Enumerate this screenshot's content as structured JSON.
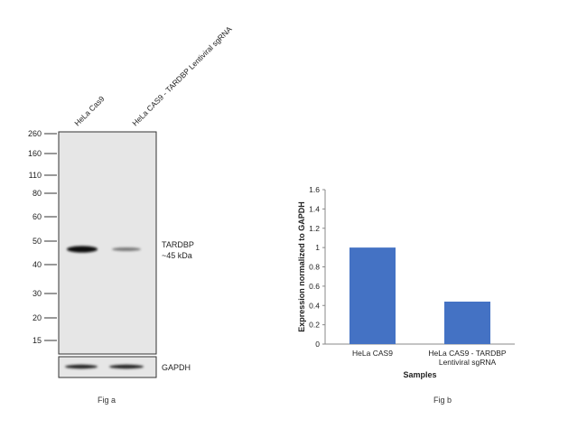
{
  "fig_a": {
    "lanes": [
      "HeLa Cas9",
      "HeLa CAS9 - TARDBP Lentiviral sgRNA"
    ],
    "markers": [
      "260",
      "160",
      "110",
      "80",
      "60",
      "50",
      "40",
      "30",
      "20",
      "15"
    ],
    "target_label": "TARDBP",
    "target_size": "~45 kDa",
    "loading_control": "GAPDH",
    "caption": "Fig a"
  },
  "fig_b": {
    "caption": "Fig b"
  },
  "chart_data": {
    "type": "bar",
    "categories": [
      "HeLa CAS9",
      "HeLa CAS9 - TARDBP Lentiviral sgRNA"
    ],
    "category_lines": [
      [
        "HeLa CAS9"
      ],
      [
        "HeLa CAS9 - TARDBP",
        "Lentiviral sgRNA"
      ]
    ],
    "values": [
      1.0,
      0.44
    ],
    "xlabel": "Samples",
    "ylabel": "Expression normalized to GAPDH",
    "ylim": [
      0,
      1.6
    ],
    "yticks": [
      "0",
      "0.2",
      "0.4",
      "0.6",
      "0.8",
      "1",
      "1.2",
      "1.4",
      "1.6"
    ],
    "bar_color": "#4472c4",
    "grid": false,
    "legend": "none"
  }
}
